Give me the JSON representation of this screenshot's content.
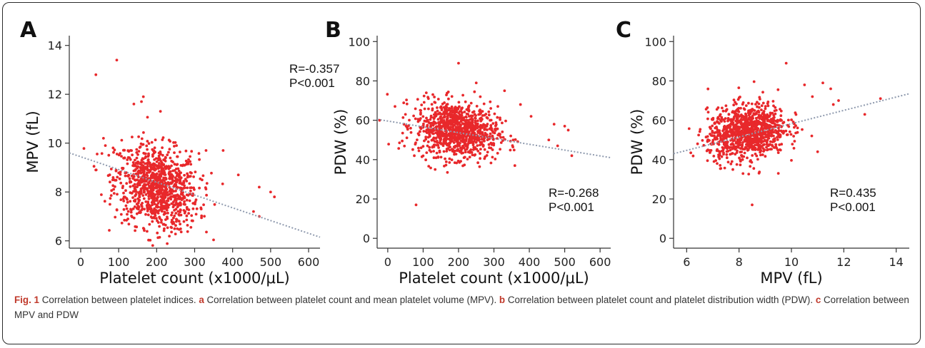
{
  "chart_data": [
    {
      "type": "scatter",
      "panel": "A",
      "xlabel": "Platelet count (x1000/μL)",
      "ylabel": "MPV (fL)",
      "xlim": [
        -30,
        630
      ],
      "ylim": [
        5.7,
        14.4
      ],
      "xticks": [
        0,
        100,
        200,
        300,
        400,
        500,
        600
      ],
      "yticks": [
        6,
        8,
        10,
        12,
        14
      ],
      "annotation": [
        "R=-0.357",
        "P<0.001"
      ],
      "trendline": {
        "x": [
          -30,
          630
        ],
        "y": [
          9.6,
          6.15
        ]
      },
      "points_summary": {
        "n": 1000,
        "x_center": 200,
        "x_spread": 55,
        "y_center": 8.2,
        "y_spread": 0.85
      },
      "outliers": [
        [
          95,
          13.4
        ],
        [
          40,
          12.8
        ],
        [
          165,
          11.9
        ],
        [
          160,
          11.7
        ],
        [
          140,
          11.6
        ],
        [
          210,
          11.3
        ],
        [
          60,
          10.2
        ],
        [
          65,
          9.9
        ],
        [
          470,
          8.2
        ],
        [
          500,
          8.0
        ],
        [
          510,
          7.8
        ],
        [
          455,
          7.2
        ],
        [
          470,
          7.0
        ],
        [
          375,
          9.7
        ],
        [
          330,
          9.7
        ],
        [
          415,
          8.7
        ]
      ]
    },
    {
      "type": "scatter",
      "panel": "B",
      "xlabel": "Platelet count (x1000/μL)",
      "ylabel": "PDW (%)",
      "xlim": [
        -30,
        630
      ],
      "ylim": [
        -5,
        103
      ],
      "xticks": [
        0,
        100,
        200,
        300,
        400,
        500,
        600
      ],
      "yticks": [
        0,
        20,
        40,
        60,
        80,
        100
      ],
      "annotation": [
        "R=-0.268",
        "P<0.001"
      ],
      "trendline": {
        "x": [
          -30,
          630
        ],
        "y": [
          60.5,
          41.0
        ]
      },
      "points_summary": {
        "n": 1000,
        "x_center": 195,
        "x_spread": 58,
        "y_center": 55,
        "y_spread": 7
      },
      "outliers": [
        [
          200,
          89
        ],
        [
          80,
          17
        ],
        [
          75,
          42
        ],
        [
          50,
          63
        ],
        [
          470,
          58
        ],
        [
          500,
          57
        ],
        [
          510,
          55
        ],
        [
          480,
          47
        ],
        [
          520,
          42
        ],
        [
          455,
          50
        ],
        [
          405,
          62
        ],
        [
          375,
          68
        ],
        [
          330,
          75
        ],
        [
          250,
          79
        ]
      ]
    },
    {
      "type": "scatter",
      "panel": "C",
      "xlabel": "MPV (fL)",
      "ylabel": "PDW (%)",
      "xlim": [
        5.5,
        14.5
      ],
      "ylim": [
        -5,
        103
      ],
      "xticks": [
        6,
        8,
        10,
        12,
        14
      ],
      "yticks": [
        0,
        20,
        40,
        60,
        80,
        100
      ],
      "annotation": [
        "R=0.435",
        "P<0.001"
      ],
      "trendline": {
        "x": [
          5.5,
          14.5
        ],
        "y": [
          43.0,
          73.5
        ]
      },
      "points_summary": {
        "n": 1000,
        "x_center": 8.3,
        "x_spread": 0.75,
        "y_center": 54,
        "y_spread": 7
      },
      "outliers": [
        [
          9.8,
          89
        ],
        [
          8.5,
          17
        ],
        [
          12.8,
          63
        ],
        [
          13.4,
          71
        ],
        [
          11.8,
          70
        ],
        [
          11.5,
          76
        ],
        [
          11.2,
          79
        ],
        [
          10.8,
          72
        ],
        [
          11.0,
          44
        ],
        [
          9.5,
          33
        ],
        [
          10.5,
          78
        ],
        [
          11.6,
          68
        ]
      ]
    }
  ],
  "caption": {
    "fig_label": "Fig. 1",
    "title": "Correlation between platelet indices.",
    "items": [
      {
        "letter": "a",
        "text": "Correlation between platelet count and mean platelet volume (MPV)."
      },
      {
        "letter": "b",
        "text": "Correlation between platelet count and platelet distribution width (PDW)."
      },
      {
        "letter": "c",
        "text": "Correlation between MPV and PDW"
      }
    ]
  },
  "colors": {
    "points": "#e8282b",
    "trendline": "#8f9aae",
    "axis": "#333333"
  }
}
